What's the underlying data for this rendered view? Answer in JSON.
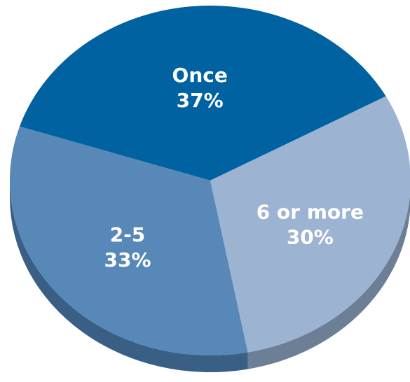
{
  "chart_data": {
    "type": "pie",
    "style": "3d",
    "slices": [
      {
        "label": "Once",
        "value": 37,
        "value_label": "37%",
        "color": "#0062a0",
        "side_color": "#0a4d7a"
      },
      {
        "label": "6 or more",
        "value": 30,
        "value_label": "30%",
        "color": "#9db3d2",
        "side_color": "#6d7f96"
      },
      {
        "label": "2-5",
        "value": 33,
        "value_label": "33%",
        "color": "#5788b8",
        "side_color": "#3a5f85"
      }
    ]
  }
}
